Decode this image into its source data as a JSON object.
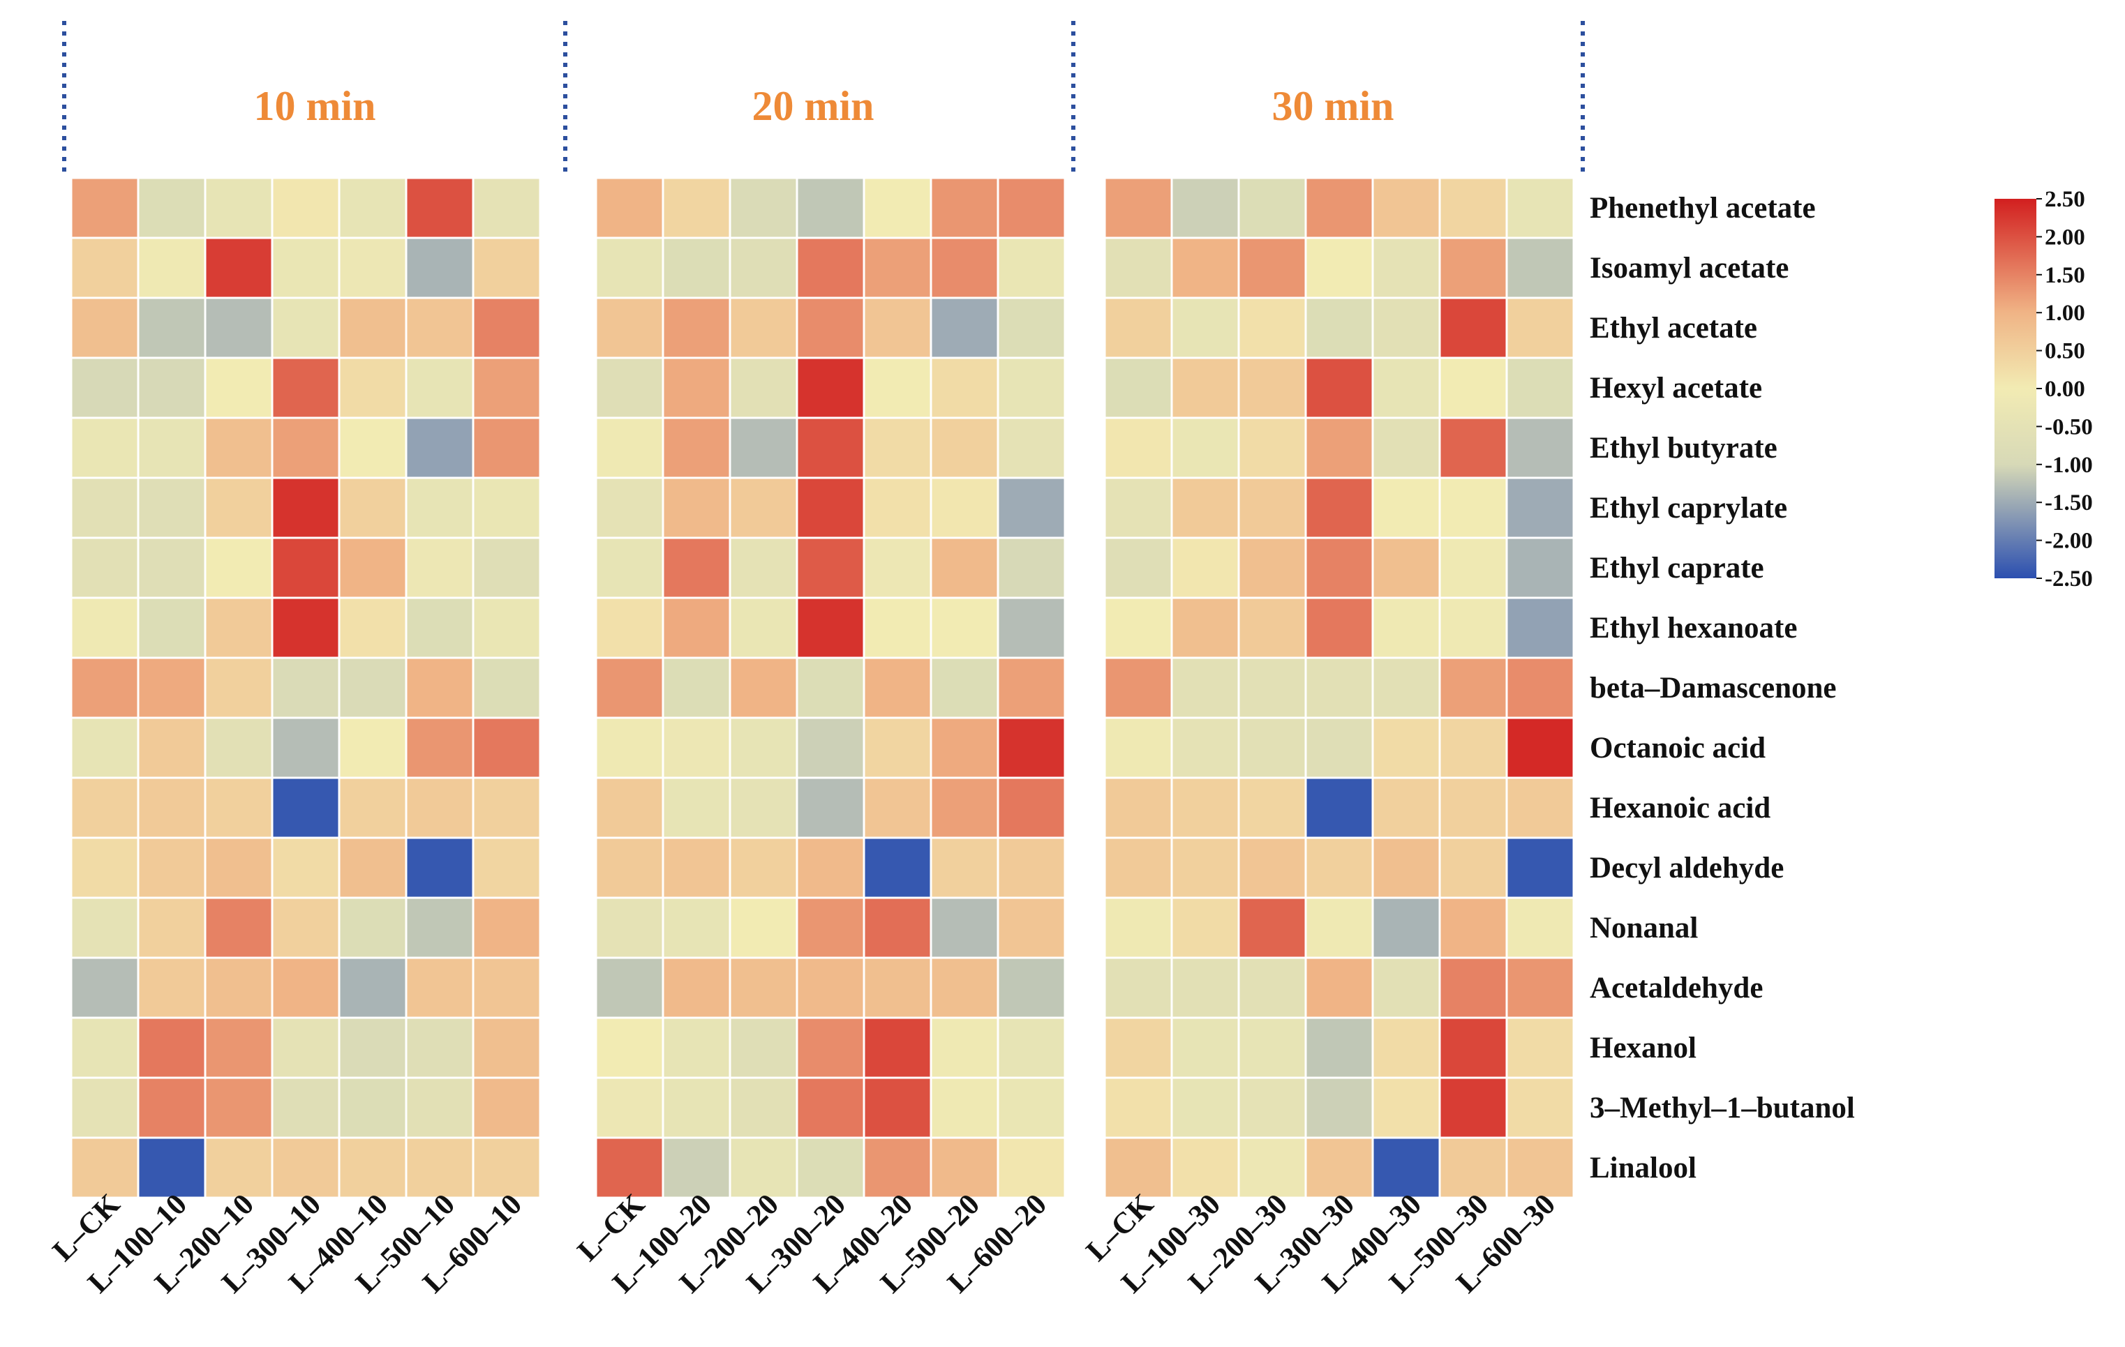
{
  "chart_data": {
    "type": "heatmap",
    "title": "",
    "panels": [
      {
        "title": "10 min",
        "columns": [
          "L–CK",
          "L–100–10",
          "L–200–10",
          "L–300–10",
          "L–400–10",
          "L–500–10",
          "L–600–10"
        ],
        "values": [
          [
            1.2,
            -0.8,
            -0.4,
            0.1,
            -0.4,
            2.0,
            -0.5
          ],
          [
            0.5,
            -0.1,
            2.2,
            -0.3,
            -0.2,
            -1.4,
            0.5
          ],
          [
            0.8,
            -1.2,
            -1.3,
            -0.4,
            0.8,
            0.7,
            1.5
          ],
          [
            -1.0,
            -1.0,
            0.0,
            1.8,
            0.3,
            -0.4,
            1.2
          ],
          [
            -0.3,
            -0.4,
            0.8,
            1.2,
            0.0,
            -1.6,
            1.3
          ],
          [
            -0.6,
            -0.7,
            0.5,
            2.3,
            0.5,
            -0.4,
            -0.3
          ],
          [
            -0.6,
            -0.7,
            0.0,
            2.1,
            1.0,
            -0.2,
            -0.7
          ],
          [
            -0.1,
            -0.8,
            0.6,
            2.3,
            0.2,
            -0.8,
            -0.3
          ],
          [
            1.2,
            1.1,
            0.5,
            -0.9,
            -0.9,
            1.0,
            -0.8
          ],
          [
            -0.4,
            0.6,
            -0.6,
            -1.3,
            0.0,
            1.3,
            1.6
          ],
          [
            0.5,
            0.6,
            0.5,
            -2.4,
            0.5,
            0.6,
            0.5
          ],
          [
            0.3,
            0.6,
            0.8,
            0.3,
            0.8,
            -2.4,
            0.4
          ],
          [
            -0.5,
            0.5,
            1.5,
            0.5,
            -0.8,
            -1.2,
            1.0
          ],
          [
            -1.3,
            0.6,
            0.8,
            1.0,
            -1.4,
            0.7,
            0.7
          ],
          [
            -0.4,
            1.6,
            1.3,
            -0.5,
            -0.9,
            -0.7,
            0.8
          ],
          [
            -0.5,
            1.5,
            1.3,
            -0.7,
            -0.8,
            -0.6,
            0.9
          ],
          [
            0.6,
            -2.4,
            0.5,
            0.6,
            0.5,
            0.5,
            0.5
          ]
        ]
      },
      {
        "title": "20 min",
        "columns": [
          "L–CK",
          "L–100–20",
          "L–200–20",
          "L–300–20",
          "L–400–20",
          "L–500–20",
          "L–600–20"
        ],
        "values": [
          [
            1.0,
            0.4,
            -0.9,
            -1.2,
            0.0,
            1.3,
            1.4
          ],
          [
            -0.4,
            -0.8,
            -0.7,
            1.6,
            1.2,
            1.4,
            -0.3
          ],
          [
            0.7,
            1.2,
            0.6,
            1.4,
            0.7,
            -1.5,
            -0.8
          ],
          [
            -0.7,
            1.1,
            -0.6,
            2.3,
            0.0,
            0.3,
            -0.4
          ],
          [
            -0.1,
            1.2,
            -1.3,
            2.0,
            0.3,
            0.5,
            -0.5
          ],
          [
            -0.5,
            0.9,
            0.6,
            2.1,
            0.2,
            0.1,
            -1.5
          ],
          [
            -0.4,
            1.6,
            -0.5,
            1.9,
            -0.2,
            0.9,
            -1.0
          ],
          [
            0.2,
            1.1,
            -0.3,
            2.3,
            0.0,
            0.0,
            -1.3
          ],
          [
            1.3,
            -0.8,
            1.0,
            -0.8,
            1.0,
            -0.8,
            1.2
          ],
          [
            -0.1,
            -0.2,
            -0.4,
            -1.1,
            0.4,
            1.1,
            2.3
          ],
          [
            0.6,
            -0.4,
            -0.5,
            -1.3,
            0.7,
            1.2,
            1.6
          ],
          [
            0.6,
            0.7,
            0.5,
            0.9,
            -2.4,
            0.5,
            0.6
          ],
          [
            -0.5,
            -0.4,
            0.0,
            1.3,
            1.7,
            -1.3,
            0.7
          ],
          [
            -1.2,
            0.9,
            0.8,
            0.9,
            0.8,
            0.8,
            -1.2
          ],
          [
            0.0,
            -0.4,
            -0.7,
            1.4,
            2.1,
            -0.1,
            -0.4
          ],
          [
            -0.2,
            -0.4,
            -0.6,
            1.6,
            2.0,
            -0.1,
            -0.3
          ],
          [
            1.8,
            -1.1,
            -0.4,
            -0.8,
            1.3,
            0.9,
            0.1
          ]
        ]
      },
      {
        "title": "30 min",
        "columns": [
          "L–CK",
          "L–100–30",
          "L–200–30",
          "L–300–30",
          "L–400–30",
          "L–500–30",
          "L–600–30"
        ],
        "values": [
          [
            1.2,
            -1.1,
            -0.8,
            1.3,
            0.7,
            0.4,
            -0.4
          ],
          [
            -0.6,
            1.0,
            1.3,
            0.0,
            -0.5,
            1.2,
            -1.2
          ],
          [
            0.5,
            -0.4,
            0.2,
            -0.8,
            -0.6,
            2.1,
            0.5
          ],
          [
            -0.8,
            0.6,
            0.6,
            2.0,
            -0.4,
            0.0,
            -0.8
          ],
          [
            0.1,
            -0.3,
            0.3,
            1.2,
            -0.6,
            1.8,
            -1.3
          ],
          [
            -0.5,
            0.6,
            0.6,
            1.8,
            0.0,
            0.0,
            -1.5
          ],
          [
            -0.7,
            0.1,
            0.8,
            1.5,
            0.8,
            -0.1,
            -1.4
          ],
          [
            0.0,
            0.8,
            0.6,
            1.6,
            -0.1,
            -0.1,
            -1.6
          ],
          [
            1.3,
            -0.6,
            -0.6,
            -0.6,
            -0.6,
            1.2,
            1.4
          ],
          [
            -0.1,
            -0.5,
            -0.6,
            -0.7,
            0.3,
            0.4,
            2.4
          ],
          [
            0.6,
            0.5,
            0.4,
            -2.4,
            0.5,
            0.5,
            0.6
          ],
          [
            0.6,
            0.5,
            0.7,
            0.5,
            0.8,
            0.5,
            -2.4
          ],
          [
            -0.1,
            0.3,
            1.8,
            -0.1,
            -1.4,
            1.0,
            -0.1
          ],
          [
            -0.6,
            -0.6,
            -0.6,
            1.0,
            -0.6,
            1.5,
            1.3
          ],
          [
            0.4,
            -0.4,
            -0.4,
            -1.2,
            0.3,
            2.1,
            0.3
          ],
          [
            0.2,
            -0.4,
            -0.5,
            -1.1,
            0.2,
            2.2,
            0.3
          ],
          [
            0.8,
            0.2,
            -0.2,
            0.7,
            -2.4,
            0.6,
            0.7
          ]
        ]
      }
    ],
    "rows": [
      "Phenethyl acetate",
      "Isoamyl acetate",
      "Ethyl acetate",
      "Hexyl acetate",
      "Ethyl butyrate",
      "Ethyl caprylate",
      "Ethyl caprate",
      "Ethyl hexanoate",
      "beta–Damascenone",
      "Octanoic acid",
      "Hexanoic acid",
      "Decyl aldehyde",
      "Nonanal",
      "Acetaldehyde",
      "Hexanol",
      "3–Methyl–1–butanol",
      "Linalool"
    ],
    "colorbar": {
      "min": -2.5,
      "max": 2.5,
      "ticks": [
        "2.50",
        "2.00",
        "1.50",
        "1.00",
        "0.50",
        "0.00",
        "-0.50",
        "-1.00",
        "-1.50",
        "-2.00",
        "-2.50"
      ],
      "colors": [
        "#2b4fb0",
        "#d7d9b7",
        "#f2ebb3",
        "#f0b486",
        "#d21f1f"
      ]
    },
    "xlabel": "",
    "ylabel": ""
  }
}
